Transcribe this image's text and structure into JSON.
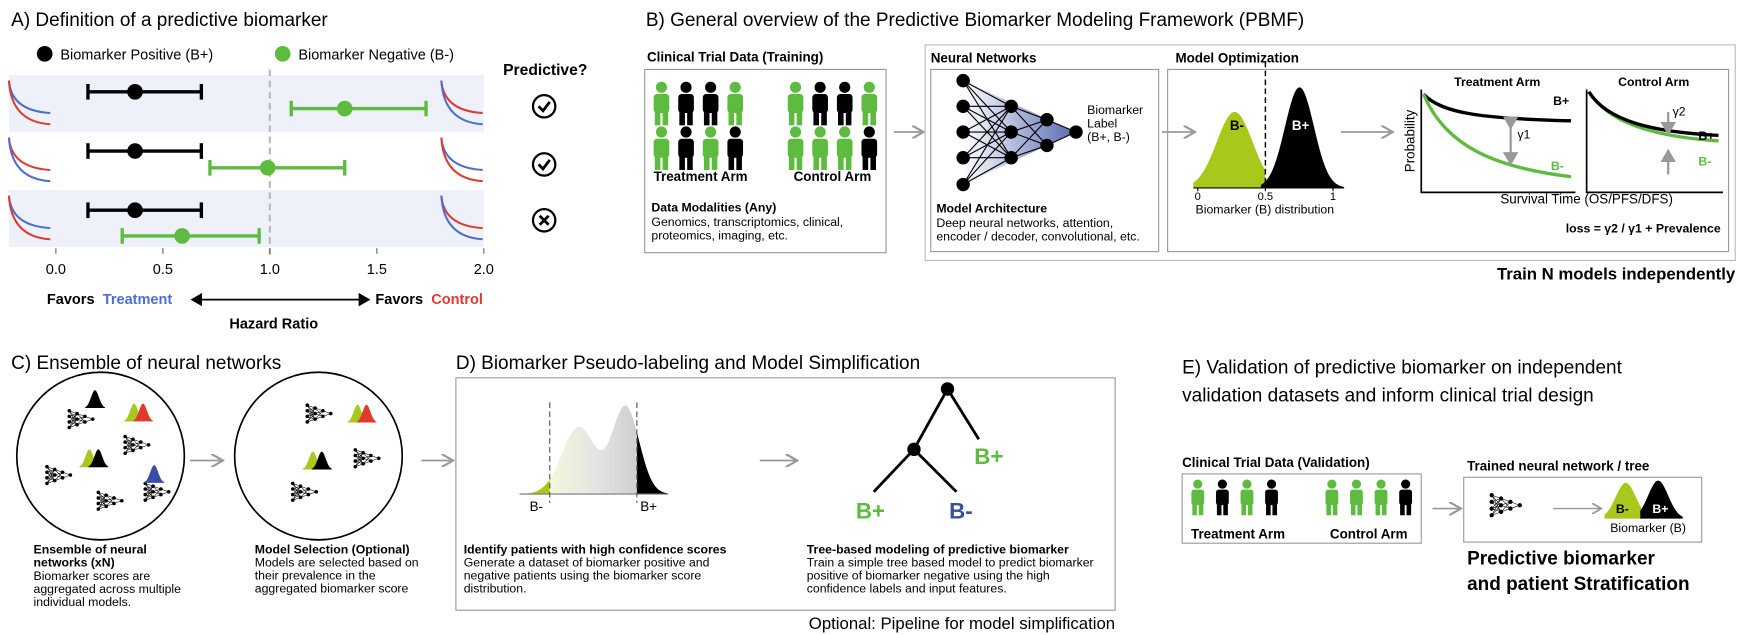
{
  "panel_a": {
    "title": "A) Definition of a predictive biomarker",
    "legend": [
      {
        "name": "Biomarker Positive (B+)",
        "color": "#000000"
      },
      {
        "name": "Biomarker Negative (B-)",
        "color": "#5dbb3f"
      }
    ],
    "predictive_header": "Predictive?",
    "rows": [
      {
        "b_pos": {
          "estimate": 0.37,
          "lower": 0.15,
          "upper": 0.68
        },
        "b_neg": {
          "estimate": 1.35,
          "lower": 1.1,
          "upper": 1.73
        },
        "predictive": true
      },
      {
        "b_pos": {
          "estimate": 0.37,
          "lower": 0.15,
          "upper": 0.68
        },
        "b_neg": {
          "estimate": 0.99,
          "lower": 0.72,
          "upper": 1.35
        },
        "predictive": true
      },
      {
        "b_pos": {
          "estimate": 0.37,
          "lower": 0.15,
          "upper": 0.68
        },
        "b_neg": {
          "estimate": 0.59,
          "lower": 0.31,
          "upper": 0.95
        },
        "predictive": false
      }
    ],
    "xlim": [
      0,
      2
    ],
    "xticks": [
      {
        "value": 0,
        "label": "0.0"
      },
      0.5,
      {
        "value": 1,
        "label": "1.0"
      },
      1.5,
      {
        "value": 2,
        "label": "2.0"
      }
    ],
    "reference_line": 1,
    "favors_left": "Favors",
    "favors_left_arm": "Treatment",
    "favors_right": "Favors",
    "favors_right_arm": "Control",
    "x_label": "Hazard Ratio"
  },
  "panel_b": {
    "title": "B) General overview of the Predictive Biomarker Modeling Framework (PBMF)",
    "training_title": "Clinical Trial Data (Training)",
    "treatment_arm": "Treatment Arm",
    "control_arm": "Control Arm",
    "modalities_title": "Data Modalities (Any)",
    "modalities_lines": [
      "Genomics, transcriptomics, clinical,",
      "proteomics, imaging, etc."
    ],
    "nn_title": "Neural Networks",
    "nn_output_label": [
      "Biomarker",
      "Label",
      "(B+, B-)"
    ],
    "architecture_title": "Model Architecture",
    "architecture_lines": [
      "Deep neural networks, attention,",
      "encoder / decoder, convolutional, etc."
    ],
    "optimization_title": "Model Optimization",
    "dist_labels": [
      "B-",
      "B+"
    ],
    "dist_xlim": [
      0,
      1
    ],
    "dist_xticks": [
      0,
      0.5,
      1
    ],
    "threshold": 0.5,
    "dist_x_label": "Biomarker (B) distribution",
    "treatment_plot_title": "Treatment Arm",
    "control_plot_title": "Control Arm",
    "y_label": "Probability",
    "x_label": "Survival Time (OS/PFS/DFS)",
    "gamma1": "γ1",
    "gamma2": "γ2",
    "curve_labels_treatment": [
      "B+",
      "B-"
    ],
    "curve_labels_control": [
      "B+",
      "B-"
    ],
    "loss": "loss = γ2 / γ1 + Prevalence",
    "footer": "Train N models independently"
  },
  "panel_c": {
    "title": "C) Ensemble of neural networks",
    "ensemble_caption_title": [
      "Ensemble of neural",
      "networks (xN)"
    ],
    "ensemble_caption": [
      "Biomarker scores are",
      "aggregated across multiple",
      "individual models."
    ],
    "selection_caption_title": "Model Selection (Optional)",
    "selection_caption": [
      "Models are selected based on",
      "their prevalence in the",
      "aggregated biomarker score"
    ]
  },
  "panel_d": {
    "title": "D) Biomarker Pseudo-labeling and Model Simplification",
    "dist_labels": [
      "B-",
      "B+"
    ],
    "tree_leaves": [
      "B+",
      "B-",
      "B+"
    ],
    "pseudo_title": "Identify patients with high confidence scores",
    "pseudo_lines": [
      "Generate a dataset of biomarker positive and",
      "negative patients using the biomarker score",
      "distribution."
    ],
    "tree_title": "Tree-based modeling of predictive biomarker",
    "tree_lines": [
      "Train a simple tree based model to predict biomarker",
      "positive of biomarker negative using the high",
      "confidence labels and input features."
    ],
    "footer": "Optional: Pipeline for model simplification"
  },
  "panel_e": {
    "title_lines": [
      "E) Validation of predictive biomarker on independent",
      "validation datasets and inform clinical trial design"
    ],
    "validation_title": "Clinical Trial Data (Validation)",
    "treatment_arm": "Treatment Arm",
    "control_arm": "Control Arm",
    "model_title": "Trained neural network / tree",
    "dist_labels": [
      "B-",
      "B+"
    ],
    "dist_x_label": "Biomarker (B)",
    "conclusion": [
      "Predictive biomarker",
      "and patient Stratification"
    ]
  }
}
